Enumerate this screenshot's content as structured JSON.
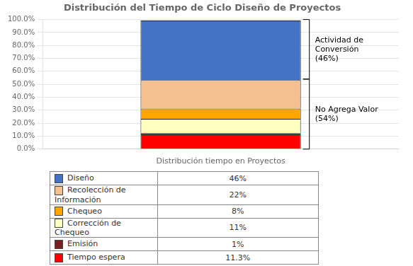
{
  "chart_data": {
    "type": "bar",
    "title": "Distribución del Tiempo de Ciclo Diseño de Proyectos",
    "categories": [
      "Distribución tiempo en Proyectos"
    ],
    "stacked": true,
    "series": [
      {
        "name": "Tiempo espera",
        "color": "#FF0000",
        "values": [
          11.3
        ],
        "value_labels": [
          "11.3%"
        ]
      },
      {
        "name": "Emisión",
        "color": "#7B2020",
        "values": [
          1.0
        ],
        "value_labels": [
          "1%"
        ]
      },
      {
        "name": "Corrección de Chequeo",
        "color": "#FFFFC0",
        "values": [
          11.0
        ],
        "value_labels": [
          "11%"
        ]
      },
      {
        "name": "Chequeo",
        "color": "#FFA500",
        "values": [
          8.0
        ],
        "value_labels": [
          "8%"
        ]
      },
      {
        "name": "Recolección de Información",
        "color": "#F4C090",
        "values": [
          22.0
        ],
        "value_labels": [
          "22%"
        ]
      },
      {
        "name": "Diseño",
        "color": "#4472C4",
        "values": [
          46.0
        ],
        "value_labels": [
          "46%"
        ]
      }
    ],
    "legend": "bottom",
    "annotations": [
      {
        "label": "Actividad de\nConversión\n(46%)",
        "ymin": 54.0,
        "ymax": 100.0
      },
      {
        "label": "No Agrega Valor\n(54%)",
        "ymin": 0.0,
        "ymax": 54.0
      }
    ],
    "ylim": [
      0,
      100
    ],
    "yticks": [
      {
        "value": 0,
        "label": "0.0%"
      },
      {
        "value": 10,
        "label": "10.0%"
      },
      {
        "value": 20,
        "label": "20.0%"
      },
      {
        "value": 30,
        "label": "30.0%"
      },
      {
        "value": 40,
        "label": "40.0%"
      },
      {
        "value": 50,
        "label": "50.0%"
      },
      {
        "value": 60,
        "label": "60.0%"
      },
      {
        "value": 70,
        "label": "70.0%"
      },
      {
        "value": 80,
        "label": "80.0%"
      },
      {
        "value": 90,
        "label": "90.0%"
      },
      {
        "value": 100,
        "label": "100.0%"
      }
    ],
    "grid": true
  }
}
